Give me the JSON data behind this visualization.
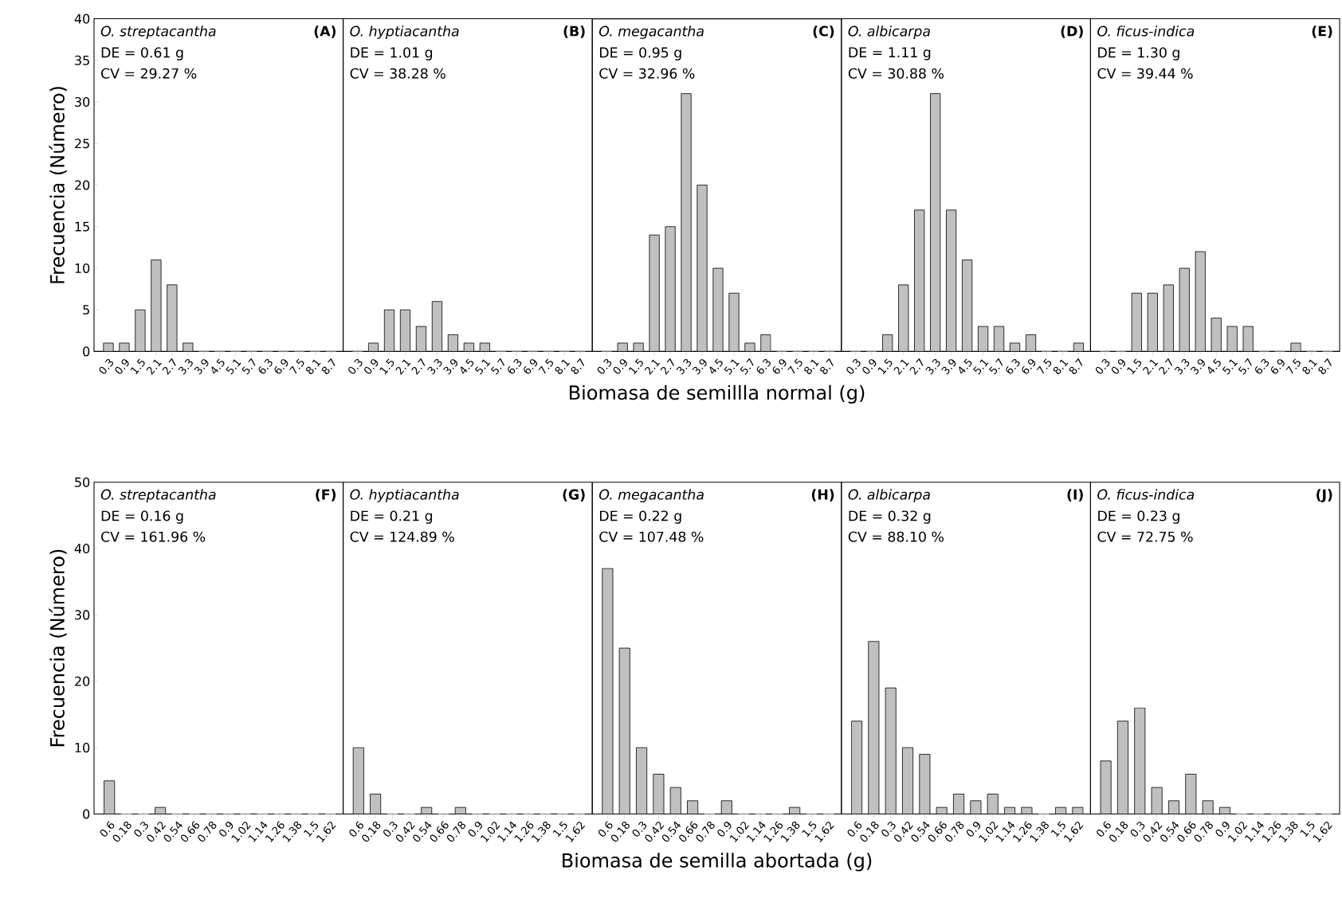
{
  "chart_data": [
    {
      "type": "bar",
      "title": "O. streptacantha",
      "annotations": [
        "DE = 0.61 g",
        "CV = 29.27 %",
        "(A)"
      ],
      "ylabel": "Frecuencia (Número)",
      "categories": [
        "0.3",
        "0.9",
        "1.5",
        "2.1",
        "2.7",
        "3.3",
        "3.9",
        "4.5",
        "5.1",
        "5.7",
        "6.3",
        "6.9",
        "7.5",
        "8.1",
        "8.7"
      ],
      "values": [
        1,
        1,
        5,
        11,
        8,
        1,
        0,
        0,
        0,
        0,
        0,
        0,
        0,
        0,
        0
      ],
      "color": "#c0c0c0",
      "ylim": [
        0,
        40
      ],
      "yticks": [
        0,
        5,
        10,
        15,
        20,
        25,
        30,
        35,
        40
      ]
    },
    {
      "type": "bar",
      "title": "O. hyptiacantha",
      "annotations": [
        "DE = 1.01 g",
        "CV = 38.28 %",
        "(B)"
      ],
      "categories": [
        "0.3",
        "0.9",
        "1.5",
        "2.1",
        "2.7",
        "3.3",
        "3.9",
        "4.5",
        "5.1",
        "5.7",
        "6.3",
        "6.9",
        "7.5",
        "8.1",
        "8.7"
      ],
      "values": [
        0,
        1,
        5,
        5,
        3,
        6,
        2,
        1,
        1,
        0,
        0,
        0,
        0,
        0,
        0
      ],
      "color": "#c0c0c0",
      "ylim": [
        0,
        40
      ],
      "yticks": [
        0,
        5,
        10,
        15,
        20,
        25,
        30,
        35,
        40
      ],
      "tick_labels": "x"
    },
    {
      "type": "bar",
      "title": "O. megacantha",
      "annotations": [
        "DE = 0.95 g",
        "CV = 32.96 %",
        "(C)"
      ],
      "xlabel": "Biomasa de semillla normal (g)",
      "categories": [
        "0.3",
        "0.9",
        "1.5",
        "2.1",
        "2.7",
        "3.3",
        "3.9",
        "4.5",
        "5.1",
        "5.7",
        "6.3",
        "6.9",
        "7.5",
        "8.1",
        "8.7"
      ],
      "values": [
        0,
        1,
        1,
        14,
        15,
        31,
        20,
        10,
        7,
        1,
        2,
        0,
        0,
        0,
        0
      ],
      "color": "#c0c0c0",
      "ylim": [
        0,
        40
      ],
      "yticks": [
        0,
        5,
        10,
        15,
        20,
        25,
        30,
        35,
        40
      ],
      "tick_labels": "x"
    },
    {
      "type": "bar",
      "title": "O. albicarpa",
      "annotations": [
        "DE = 1.11 g",
        "CV = 30.88 %",
        "(D)"
      ],
      "categories": [
        "0.3",
        "0.9",
        "1.5",
        "2.1",
        "2.7",
        "3.3",
        "3.9",
        "4.5",
        "5.1",
        "5.7",
        "6.3",
        "6.9",
        "7.5",
        "8.1",
        "8.7"
      ],
      "values": [
        0,
        0,
        2,
        8,
        17,
        31,
        17,
        11,
        3,
        3,
        1,
        2,
        0,
        0,
        1
      ],
      "color": "#c0c0c0",
      "ylim": [
        0,
        40
      ],
      "yticks": [
        0,
        5,
        10,
        15,
        20,
        25,
        30,
        35,
        40
      ],
      "tick_labels": "x"
    },
    {
      "type": "bar",
      "title": "O. ficus-indica",
      "annotations": [
        "DE = 1.30 g",
        "CV = 39.44 %",
        "(E)"
      ],
      "categories": [
        "0.3",
        "0.9",
        "1.5",
        "2.1",
        "2.7",
        "3.3",
        "3.9",
        "4.5",
        "5.1",
        "5.7",
        "6.3",
        "6.9",
        "7.5",
        "8.1",
        "8.7"
      ],
      "values": [
        0,
        0,
        7,
        7,
        8,
        10,
        12,
        4,
        3,
        3,
        0,
        0,
        1,
        0,
        0
      ],
      "color": "#c0c0c0",
      "ylim": [
        0,
        40
      ],
      "yticks": [
        0,
        5,
        10,
        15,
        20,
        25,
        30,
        35,
        40
      ],
      "tick_labels": "x"
    },
    {
      "type": "bar",
      "title": "O. streptacantha",
      "annotations": [
        "DE = 0.16 g",
        "CV = 161.96 %",
        "(F)"
      ],
      "ylabel": "Frecuencia (Número)",
      "categories": [
        "0.6",
        "0.18",
        "0.3",
        "0.42",
        "0.54",
        "0.66",
        "0.78",
        "0.9",
        "1.02",
        "1.14",
        "1.26",
        "1.38",
        "1.5",
        "1.62"
      ],
      "values": [
        5,
        0,
        0,
        1,
        0,
        0,
        0,
        0,
        0,
        0,
        0,
        0,
        0,
        0
      ],
      "color": "#c0c0c0",
      "ylim": [
        0,
        50
      ],
      "yticks": [
        0,
        10,
        20,
        30,
        40,
        50
      ]
    },
    {
      "type": "bar",
      "title": "O. hyptiacantha",
      "annotations": [
        "DE = 0.21 g",
        "CV = 124.89 %",
        "(G)"
      ],
      "categories": [
        "0.6",
        "0.18",
        "0.3",
        "0.42",
        "0.54",
        "0.66",
        "0.78",
        "0.9",
        "1.02",
        "1.14",
        "1.26",
        "1.38",
        "1.5",
        "1.62"
      ],
      "values": [
        10,
        3,
        0,
        0,
        1,
        0,
        1,
        0,
        0,
        0,
        0,
        0,
        0,
        0
      ],
      "color": "#c0c0c0",
      "ylim": [
        0,
        50
      ],
      "yticks": [
        0,
        10,
        20,
        30,
        40,
        50
      ],
      "tick_labels": "x"
    },
    {
      "type": "bar",
      "title": "O. megacantha",
      "annotations": [
        "DE = 0.22 g",
        "CV = 107.48 %",
        "(H)"
      ],
      "xlabel": "Biomasa de semilla abortada (g)",
      "categories": [
        "0.6",
        "0.18",
        "0.3",
        "0.42",
        "0.54",
        "0.66",
        "0.78",
        "0.9",
        "1.02",
        "1.14",
        "1.26",
        "1.38",
        "1.5",
        "1.62"
      ],
      "values": [
        37,
        25,
        10,
        6,
        4,
        2,
        0,
        2,
        0,
        0,
        0,
        1,
        0,
        0
      ],
      "color": "#c0c0c0",
      "ylim": [
        0,
        50
      ],
      "yticks": [
        0,
        10,
        20,
        30,
        40,
        50
      ],
      "tick_labels": "x"
    },
    {
      "type": "bar",
      "title": "O. albicarpa",
      "annotations": [
        "DE = 0.32 g",
        "CV = 88.10 %",
        "(I)"
      ],
      "categories": [
        "0.6",
        "0.18",
        "0.3",
        "0.42",
        "0.54",
        "0.66",
        "0.78",
        "0.9",
        "1.02",
        "1.14",
        "1.26",
        "1.38",
        "1.5",
        "1.62"
      ],
      "values": [
        14,
        26,
        19,
        10,
        9,
        1,
        3,
        2,
        3,
        1,
        1,
        0,
        1,
        1
      ],
      "color": "#c0c0c0",
      "ylim": [
        0,
        50
      ],
      "yticks": [
        0,
        10,
        20,
        30,
        40,
        50
      ],
      "tick_labels": "x"
    },
    {
      "type": "bar",
      "title": "O. ficus-indica",
      "annotations": [
        "DE = 0.23 g",
        "CV = 72.75 %",
        "(J)"
      ],
      "categories": [
        "0.6",
        "0.18",
        "0.3",
        "0.42",
        "0.54",
        "0.66",
        "0.78",
        "0.9",
        "1.02",
        "1.14",
        "1.26",
        "1.38",
        "1.5",
        "1.62"
      ],
      "values": [
        8,
        14,
        16,
        4,
        2,
        6,
        2,
        1,
        0,
        0,
        0,
        0,
        0,
        0
      ],
      "color": "#c0c0c0",
      "ylim": [
        0,
        50
      ],
      "yticks": [
        0,
        10,
        20,
        30,
        40,
        50
      ],
      "tick_labels": "x"
    }
  ]
}
